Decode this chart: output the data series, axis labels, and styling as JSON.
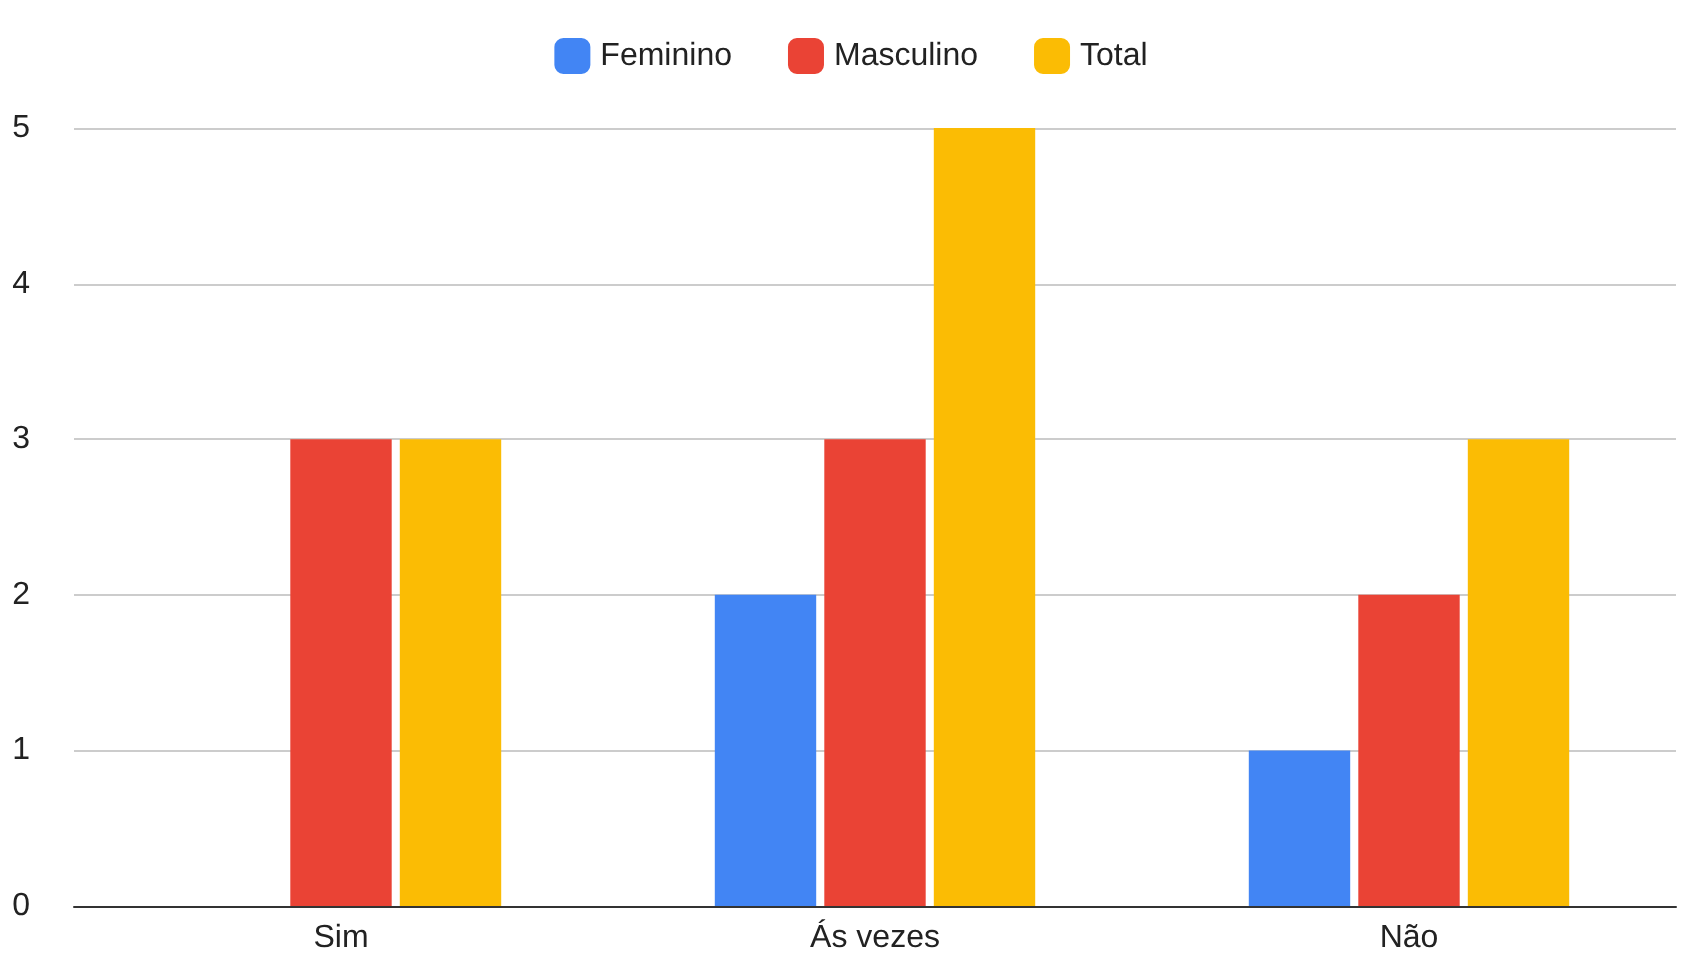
{
  "chart_data": {
    "type": "bar",
    "categories": [
      "Sim",
      "Ás vezes",
      "Não"
    ],
    "series": [
      {
        "name": "Feminino",
        "color": "#4285f4",
        "values": [
          0,
          2,
          1
        ]
      },
      {
        "name": "Masculino",
        "color": "#ea4335",
        "values": [
          3,
          3,
          2
        ]
      },
      {
        "name": "Total",
        "color": "#fbbc04",
        "values": [
          3,
          5,
          3
        ]
      }
    ],
    "ylim": [
      0,
      5
    ],
    "yticks": [
      0,
      1,
      2,
      3,
      4,
      5
    ],
    "grid": "y",
    "legend": "top"
  }
}
